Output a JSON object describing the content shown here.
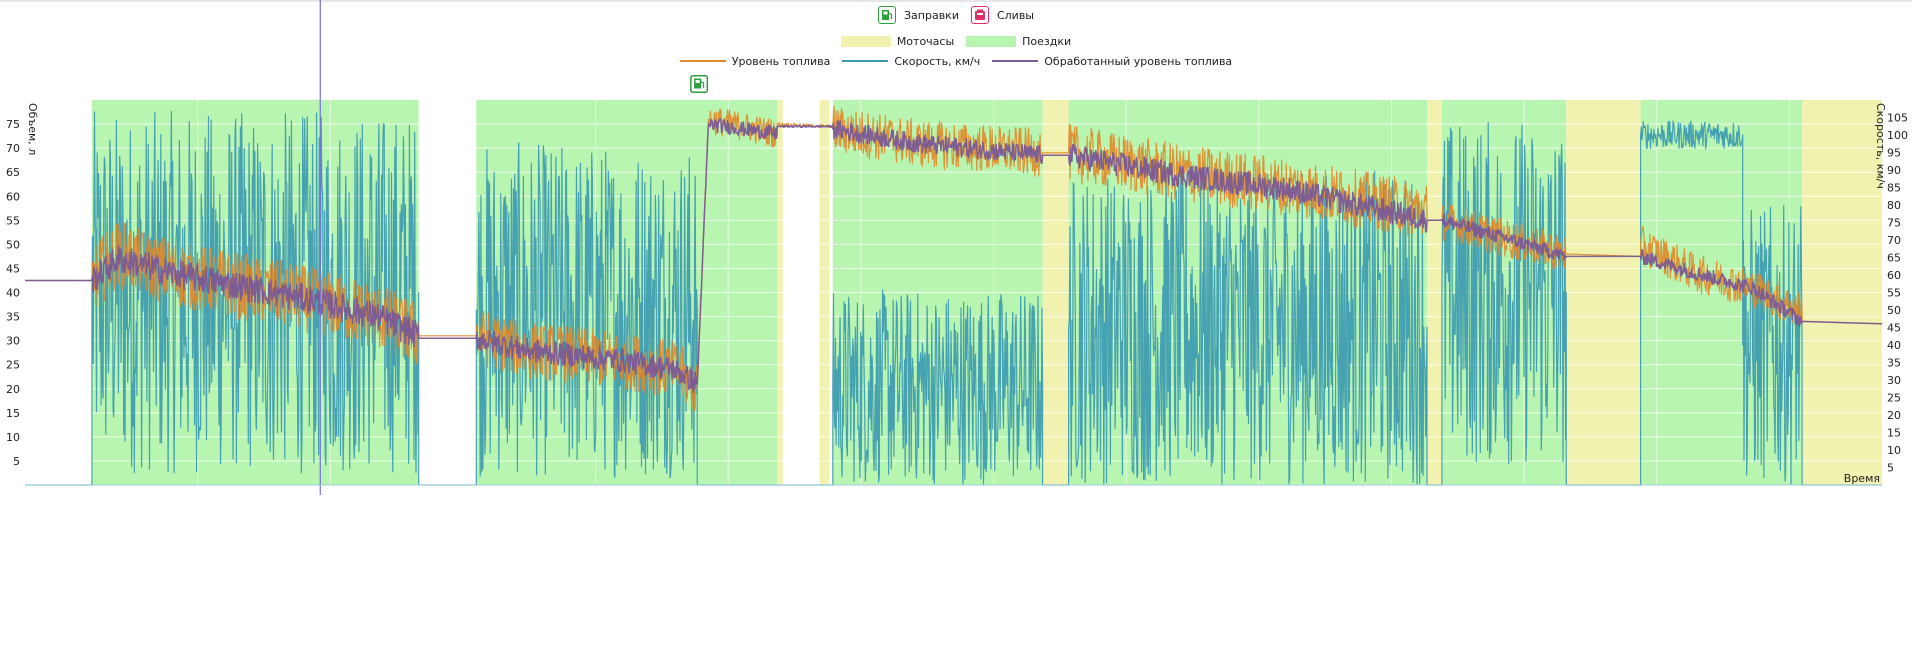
{
  "legend": {
    "refuels_label": "Заправки",
    "drains_label": "Сливы",
    "engine_hours_label": "Моточасы",
    "trips_label": "Поездки",
    "fuel_level_label": "Уровень топлива",
    "speed_label": "Скорость, км/ч",
    "processed_fuel_label": "Обработанный уровень топлива"
  },
  "colors": {
    "refuel_icon": "#2e9e3e",
    "drain_icon": "#e0306a",
    "engine_hours": "#f2f2b0",
    "trips": "#b8f5b0",
    "fuel_level": "#e08a2a",
    "speed": "#3a98b0",
    "processed_fuel": "#7a5a96",
    "cursor": "#7070e0"
  },
  "chart_data": {
    "type": "line",
    "y_left": {
      "label": "Объем, л",
      "ticks": [
        5,
        10,
        15,
        20,
        25,
        30,
        35,
        40,
        45,
        50,
        55,
        60,
        65,
        70,
        75
      ],
      "range": [
        0,
        80
      ]
    },
    "y_right": {
      "label": "Скорость, км/ч",
      "ticks": [
        5,
        10,
        15,
        20,
        25,
        30,
        35,
        40,
        45,
        50,
        55,
        60,
        65,
        70,
        75,
        80,
        85,
        90,
        95,
        100,
        105
      ],
      "range": [
        0,
        110
      ]
    },
    "x_label": "Время",
    "x_range": [
      0,
      100
    ],
    "trips": [
      [
        3.6,
        21.2
      ],
      [
        24.3,
        40.5
      ],
      [
        42.8,
        43.3
      ],
      [
        43.5,
        54.8
      ],
      [
        56.2,
        75.5
      ],
      [
        76.3,
        83.0
      ],
      [
        87.0,
        95.7
      ]
    ],
    "engine_hours": [
      [
        40.5,
        40.8
      ],
      [
        42.8,
        43.3
      ],
      [
        54.8,
        56.2
      ],
      [
        75.5,
        76.3
      ],
      [
        83.0,
        87.0
      ],
      [
        95.7,
        100
      ]
    ],
    "cursor_x": 15.9,
    "refuel_markers": [
      36.3
    ],
    "series": [
      {
        "name": "Уровень топлива",
        "axis": "left",
        "segments": [
          {
            "x": [
              0,
              3.6
            ],
            "y": [
              42.5,
              42.5
            ],
            "jitter": 0
          },
          {
            "x": [
              3.6,
              5,
              8,
              12,
              16,
              19,
              21.2
            ],
            "y": [
              42.5,
              48,
              44,
              41,
              38,
              35,
              31
            ],
            "jitter": 7
          },
          {
            "x": [
              21.2,
              24.3
            ],
            "y": [
              31,
              31
            ],
            "jitter": 0
          },
          {
            "x": [
              24.3,
              27,
              32,
              35,
              36.2
            ],
            "y": [
              31,
              28,
              26,
              24,
              20
            ],
            "jitter": 6
          },
          {
            "x": [
              36.2,
              36.8
            ],
            "y": [
              20,
              76
            ],
            "jitter": 1
          },
          {
            "x": [
              36.8,
              40.5
            ],
            "y": [
              76,
              73
            ],
            "jitter": 3
          },
          {
            "x": [
              40.5,
              43.5
            ],
            "y": [
              75,
              74.5
            ],
            "jitter": 0.3
          },
          {
            "x": [
              43.5,
              48,
              54.8
            ],
            "y": [
              74,
              71,
              69
            ],
            "jitter": 5
          },
          {
            "x": [
              54.8,
              56.2
            ],
            "y": [
              69,
              69
            ],
            "jitter": 0
          },
          {
            "x": [
              56.2,
              62,
              68,
              75.5
            ],
            "y": [
              69,
              65,
              62,
              57
            ],
            "jitter": 6
          },
          {
            "x": [
              75.5,
              76.3
            ],
            "y": [
              55,
              55
            ],
            "jitter": 0
          },
          {
            "x": [
              76.3,
              80,
              83.0
            ],
            "y": [
              55,
              51,
              48
            ],
            "jitter": 4
          },
          {
            "x": [
              83.0,
              87.0
            ],
            "y": [
              48,
              47.5
            ],
            "jitter": 0
          },
          {
            "x": [
              87.0,
              90,
              93,
              95.7
            ],
            "y": [
              50,
              44,
              41,
              36
            ],
            "jitter": 4
          },
          {
            "x": [
              95.7,
              100
            ],
            "y": [
              34,
              33.5
            ],
            "jitter": 0
          }
        ]
      },
      {
        "name": "Обработанный уровень топлива",
        "axis": "left",
        "segments": [
          {
            "x": [
              0,
              3.6
            ],
            "y": [
              42.5,
              42.5
            ],
            "jitter": 0
          },
          {
            "x": [
              3.6,
              5,
              8,
              12,
              16,
              19,
              21.2
            ],
            "y": [
              42.5,
              47,
              44,
              41,
              38,
              35,
              31
            ],
            "jitter": 3
          },
          {
            "x": [
              21.2,
              24.3
            ],
            "y": [
              30.5,
              30.5
            ],
            "jitter": 0
          },
          {
            "x": [
              24.3,
              27,
              32,
              35,
              36.2
            ],
            "y": [
              30.5,
              28,
              26,
              24,
              21
            ],
            "jitter": 2.5
          },
          {
            "x": [
              36.2,
              36.8
            ],
            "y": [
              21,
              75
            ],
            "jitter": 0.5
          },
          {
            "x": [
              36.8,
              40.5
            ],
            "y": [
              75,
              73
            ],
            "jitter": 1.5
          },
          {
            "x": [
              40.5,
              43.5
            ],
            "y": [
              74.5,
              74.5
            ],
            "jitter": 0.2
          },
          {
            "x": [
              43.5,
              48,
              54.8
            ],
            "y": [
              74,
              71,
              68.5
            ],
            "jitter": 2
          },
          {
            "x": [
              54.8,
              56.2
            ],
            "y": [
              68.5,
              68.5
            ],
            "jitter": 0
          },
          {
            "x": [
              56.2,
              62,
              68,
              75.5
            ],
            "y": [
              68.5,
              64.5,
              61.5,
              55
            ],
            "jitter": 2.5
          },
          {
            "x": [
              75.5,
              76.3
            ],
            "y": [
              55,
              55
            ],
            "jitter": 0
          },
          {
            "x": [
              76.3,
              80,
              83.0
            ],
            "y": [
              55,
              51,
              47.5
            ],
            "jitter": 1.5
          },
          {
            "x": [
              83.0,
              87.0
            ],
            "y": [
              47.5,
              47.5
            ],
            "jitter": 0
          },
          {
            "x": [
              87.0,
              90,
              93,
              95.7
            ],
            "y": [
              47.5,
              44,
              41,
              34
            ],
            "jitter": 1.5
          },
          {
            "x": [
              95.7,
              100
            ],
            "y": [
              34,
              33.5
            ],
            "jitter": 0
          }
        ]
      },
      {
        "name": "Скорость, км/ч",
        "axis": "right",
        "segments": [
          {
            "x": [
              0,
              3.6
            ],
            "y": [
              0,
              0
            ],
            "jitter": 0
          },
          {
            "x": [
              3.6,
              21.2
            ],
            "y": [
              55,
              55
            ],
            "jitter": 52
          },
          {
            "x": [
              21.2,
              24.3
            ],
            "y": [
              0,
              0
            ],
            "jitter": 0
          },
          {
            "x": [
              24.3,
              36.2
            ],
            "y": [
              50,
              50
            ],
            "jitter": 48
          },
          {
            "x": [
              36.2,
              40.5
            ],
            "y": [
              0,
              0
            ],
            "jitter": 0
          },
          {
            "x": [
              40.5,
              43.5
            ],
            "y": [
              0,
              0
            ],
            "jitter": 0
          },
          {
            "x": [
              43.5,
              54.8
            ],
            "y": [
              28,
              28
            ],
            "jitter": 28
          },
          {
            "x": [
              54.8,
              56.2
            ],
            "y": [
              0,
              0
            ],
            "jitter": 0
          },
          {
            "x": [
              56.2,
              75.5
            ],
            "y": [
              45,
              45
            ],
            "jitter": 45
          },
          {
            "x": [
              75.5,
              76.3
            ],
            "y": [
              0,
              0
            ],
            "jitter": 0
          },
          {
            "x": [
              76.3,
              83.0
            ],
            "y": [
              55,
              55
            ],
            "jitter": 50
          },
          {
            "x": [
              83.0,
              87.0
            ],
            "y": [
              0,
              0
            ],
            "jitter": 0
          },
          {
            "x": [
              87.0,
              92.5
            ],
            "y": [
              100,
              100
            ],
            "jitter": 4
          },
          {
            "x": [
              92.5,
              95.7
            ],
            "y": [
              40,
              40
            ],
            "jitter": 40
          },
          {
            "x": [
              95.7,
              100
            ],
            "y": [
              0,
              0
            ],
            "jitter": 0
          }
        ]
      }
    ]
  }
}
